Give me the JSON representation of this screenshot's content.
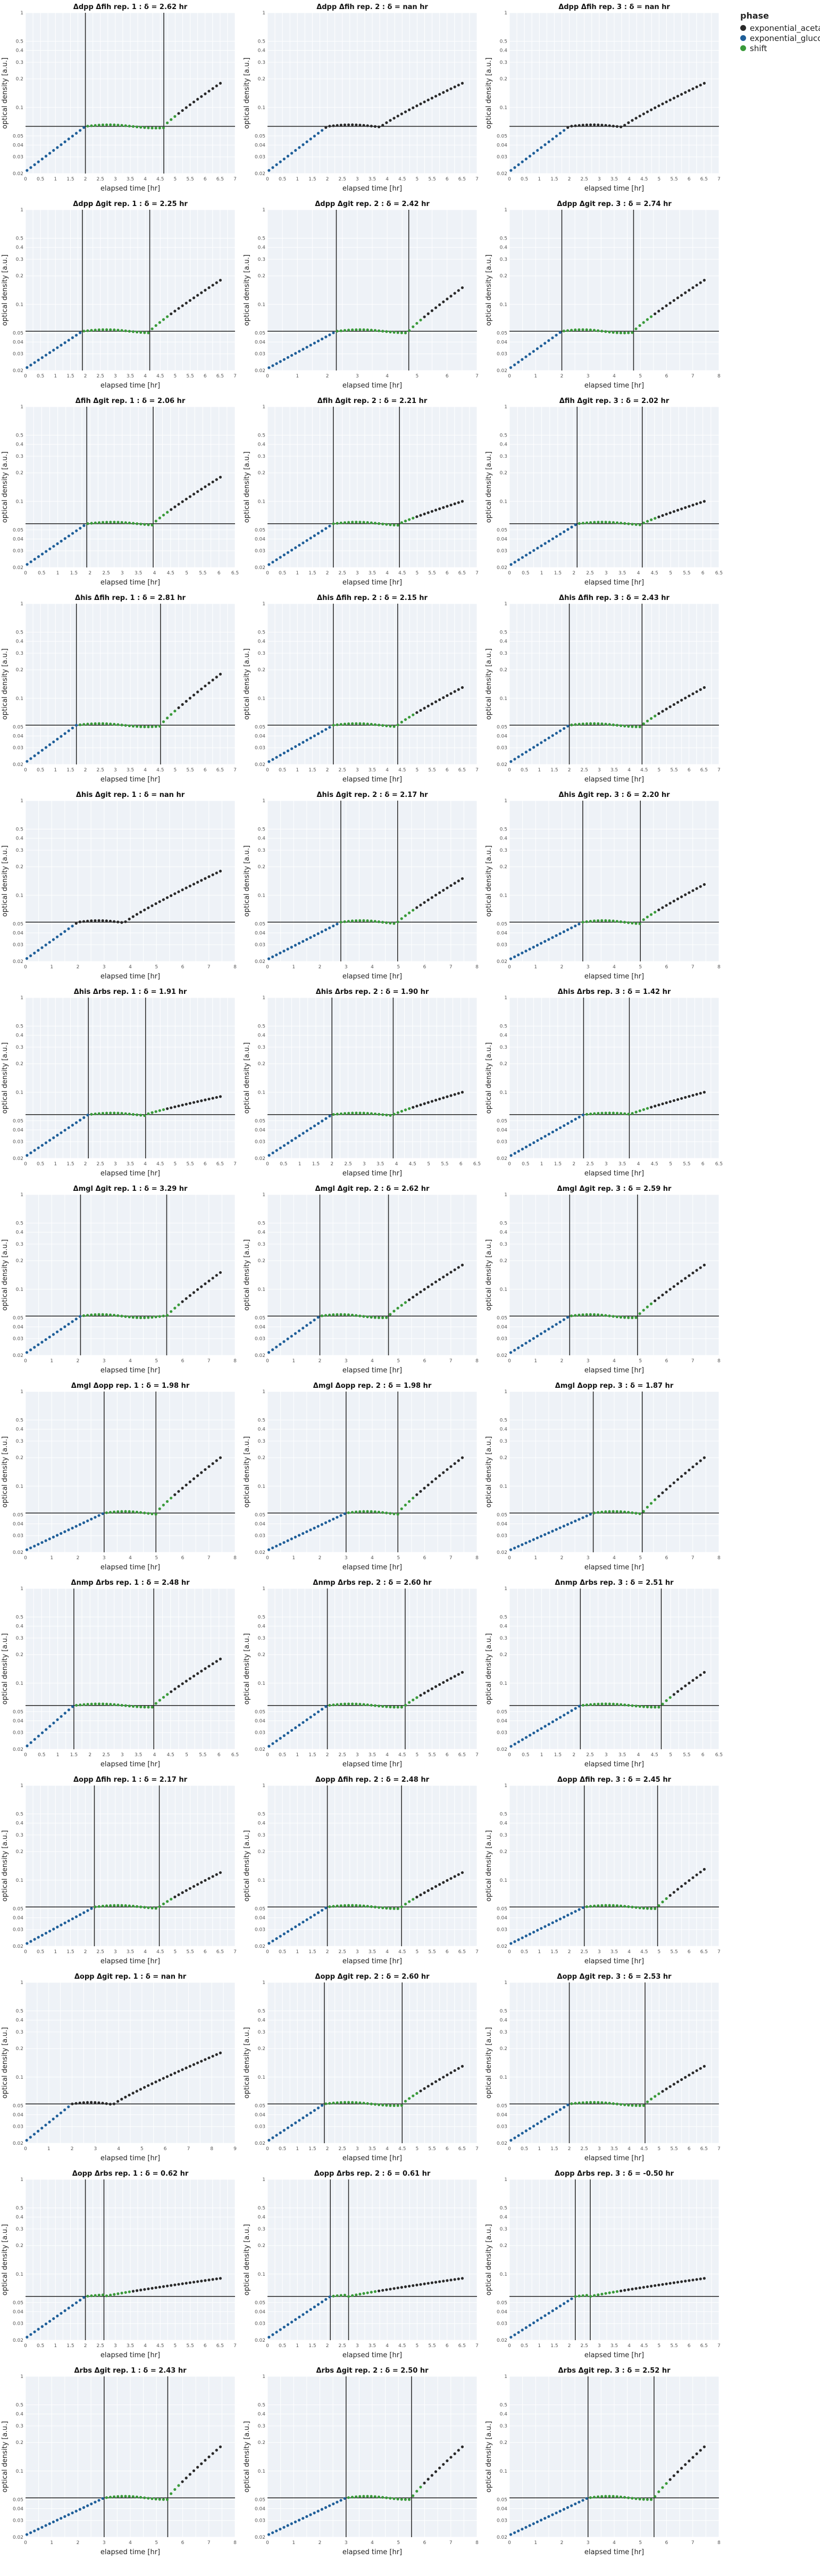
{
  "legend": {
    "title": "phase",
    "entries": [
      {
        "name": "exponential_acetate",
        "color": "#2a2a2a"
      },
      {
        "name": "exponential_glucose",
        "color": "#1f5f99"
      },
      {
        "name": "shift",
        "color": "#3a9a3a"
      }
    ]
  },
  "chart_data": {
    "type": "scatter",
    "xlabel": "elapsed time [hr]",
    "ylabel": "optical density [a.u.]",
    "y_scale": "log",
    "ylim": [
      0.02,
      1.0
    ],
    "y_ticks": [
      0.02,
      0.03,
      0.04,
      0.05,
      0.1,
      0.2,
      0.3,
      0.4,
      0.5,
      1
    ],
    "background_color": "#eef2f7",
    "panels": [
      {
        "title": "Δdpp Δfih rep. 1 : δ = 2.62 hr",
        "xmax": 7,
        "xstep": 0.5,
        "t0": 2.0,
        "t1": 4.62,
        "od": 0.063,
        "tail": 0.18,
        "mode": "normal"
      },
      {
        "title": "Δdpp Δfih rep. 2 : δ = nan hr",
        "xmax": 7,
        "xstep": 0.5,
        "t0": 2.0,
        "t1": null,
        "od": 0.063,
        "tail": 0.18,
        "mode": "nan"
      },
      {
        "title": "Δdpp Δfih rep. 3 : δ = nan hr",
        "xmax": 7,
        "xstep": 0.5,
        "t0": 2.0,
        "t1": null,
        "od": 0.063,
        "tail": 0.18,
        "mode": "nan"
      },
      {
        "title": "Δdpp Δgit rep. 1 : δ = 2.25 hr",
        "xmax": 7,
        "xstep": 0.5,
        "t0": 1.9,
        "t1": 4.15,
        "od": 0.052,
        "tail": 0.18,
        "mode": "normal"
      },
      {
        "title": "Δdpp Δgit rep. 2 : δ = 2.42 hr",
        "xmax": 7,
        "xstep": 1,
        "t0": 2.3,
        "t1": 4.72,
        "od": 0.052,
        "tail": 0.15,
        "mode": "normal"
      },
      {
        "title": "Δdpp Δgit rep. 3 : δ = 2.74 hr",
        "xmax": 8,
        "xstep": 1,
        "t0": 2.0,
        "t1": 4.74,
        "od": 0.052,
        "tail": 0.18,
        "mode": "normal"
      },
      {
        "title": "Δfih Δgit rep. 1 : δ = 2.06 hr",
        "xmax": 6.5,
        "xstep": 0.5,
        "t0": 1.9,
        "t1": 3.96,
        "od": 0.058,
        "tail": 0.18,
        "mode": "normal"
      },
      {
        "title": "Δfih Δgit rep. 2 : δ = 2.21 hr",
        "xmax": 7,
        "xstep": 0.5,
        "t0": 2.2,
        "t1": 4.41,
        "od": 0.058,
        "tail": 0.1,
        "mode": "normal"
      },
      {
        "title": "Δfih Δgit rep. 3 : δ = 2.02 hr",
        "xmax": 6.5,
        "xstep": 0.5,
        "t0": 2.1,
        "t1": 4.12,
        "od": 0.058,
        "tail": 0.1,
        "mode": "normal"
      },
      {
        "title": "Δhis Δfih rep. 1 : δ = 2.81 hr",
        "xmax": 7,
        "xstep": 0.5,
        "t0": 1.7,
        "t1": 4.51,
        "od": 0.052,
        "tail": 0.18,
        "mode": "normal"
      },
      {
        "title": "Δhis Δfih rep. 2 : δ = 2.15 hr",
        "xmax": 7,
        "xstep": 0.5,
        "t0": 2.2,
        "t1": 4.35,
        "od": 0.052,
        "tail": 0.13,
        "mode": "normal"
      },
      {
        "title": "Δhis Δfih rep. 3 : δ = 2.43 hr",
        "xmax": 7,
        "xstep": 0.5,
        "t0": 2.0,
        "t1": 4.43,
        "od": 0.052,
        "tail": 0.13,
        "mode": "normal"
      },
      {
        "title": "Δhis Δgit rep. 1 : δ = nan hr",
        "xmax": 8,
        "xstep": 1,
        "t0": 2.0,
        "t1": null,
        "od": 0.052,
        "tail": 0.18,
        "mode": "nan"
      },
      {
        "title": "Δhis Δgit rep. 2 : δ = 2.17 hr",
        "xmax": 8,
        "xstep": 1,
        "t0": 2.8,
        "t1": 4.97,
        "od": 0.052,
        "tail": 0.15,
        "mode": "normal"
      },
      {
        "title": "Δhis Δgit rep. 3 : δ = 2.20 hr",
        "xmax": 8,
        "xstep": 1,
        "t0": 2.8,
        "t1": 5.0,
        "od": 0.052,
        "tail": 0.13,
        "mode": "normal"
      },
      {
        "title": "Δhis Δrbs rep. 1 : δ = 1.91 hr",
        "xmax": 7,
        "xstep": 0.5,
        "t0": 2.1,
        "t1": 4.01,
        "od": 0.058,
        "tail": 0.09,
        "mode": "normal"
      },
      {
        "title": "Δhis Δrbs rep. 2 : δ = 1.90 hr",
        "xmax": 6.5,
        "xstep": 0.5,
        "t0": 2.0,
        "t1": 3.9,
        "od": 0.058,
        "tail": 0.1,
        "mode": "normal"
      },
      {
        "title": "Δhis Δrbs rep. 3 : δ = 1.42 hr",
        "xmax": 6.5,
        "xstep": 0.5,
        "t0": 2.3,
        "t1": 3.72,
        "od": 0.058,
        "tail": 0.1,
        "mode": "normal"
      },
      {
        "title": "Δmgl Δgit rep. 1 : δ = 3.29 hr",
        "xmax": 8,
        "xstep": 1,
        "t0": 2.1,
        "t1": 5.39,
        "od": 0.052,
        "tail": 0.15,
        "mode": "normal"
      },
      {
        "title": "Δmgl Δgit rep. 2 : δ = 2.62 hr",
        "xmax": 8,
        "xstep": 1,
        "t0": 2.0,
        "t1": 4.62,
        "od": 0.052,
        "tail": 0.18,
        "mode": "normal"
      },
      {
        "title": "Δmgl Δgit rep. 3 : δ = 2.59 hr",
        "xmax": 8,
        "xstep": 1,
        "t0": 2.3,
        "t1": 4.89,
        "od": 0.052,
        "tail": 0.18,
        "mode": "normal"
      },
      {
        "title": "Δmgl Δopp rep. 1 : δ = 1.98 hr",
        "xmax": 8,
        "xstep": 1,
        "t0": 3.0,
        "t1": 4.98,
        "od": 0.052,
        "tail": 0.2,
        "mode": "normal"
      },
      {
        "title": "Δmgl Δopp rep. 2 : δ = 1.98 hr",
        "xmax": 8,
        "xstep": 1,
        "t0": 3.0,
        "t1": 4.98,
        "od": 0.052,
        "tail": 0.2,
        "mode": "normal"
      },
      {
        "title": "Δmgl Δopp rep. 3 : δ = 1.87 hr",
        "xmax": 8,
        "xstep": 1,
        "t0": 3.2,
        "t1": 5.07,
        "od": 0.052,
        "tail": 0.2,
        "mode": "normal"
      },
      {
        "title": "Δnmp Δrbs rep. 1 : δ = 2.48 hr",
        "xmax": 6.5,
        "xstep": 0.5,
        "t0": 1.5,
        "t1": 3.98,
        "od": 0.058,
        "tail": 0.18,
        "mode": "normal"
      },
      {
        "title": "Δnmp Δrbs rep. 2 : δ = 2.60 hr",
        "xmax": 7,
        "xstep": 0.5,
        "t0": 2.0,
        "t1": 4.6,
        "od": 0.058,
        "tail": 0.13,
        "mode": "normal"
      },
      {
        "title": "Δnmp Δrbs rep. 3 : δ = 2.51 hr",
        "xmax": 6.5,
        "xstep": 0.5,
        "t0": 2.2,
        "t1": 4.71,
        "od": 0.058,
        "tail": 0.13,
        "mode": "normal"
      },
      {
        "title": "Δopp Δfih rep. 1 : δ = 2.17 hr",
        "xmax": 7,
        "xstep": 0.5,
        "t0": 2.3,
        "t1": 4.47,
        "od": 0.052,
        "tail": 0.12,
        "mode": "normal"
      },
      {
        "title": "Δopp Δfih rep. 2 : δ = 2.48 hr",
        "xmax": 7,
        "xstep": 0.5,
        "t0": 2.0,
        "t1": 4.48,
        "od": 0.052,
        "tail": 0.12,
        "mode": "normal"
      },
      {
        "title": "Δopp Δfih rep. 3 : δ = 2.45 hr",
        "xmax": 7,
        "xstep": 0.5,
        "t0": 2.5,
        "t1": 4.95,
        "od": 0.052,
        "tail": 0.13,
        "mode": "normal"
      },
      {
        "title": "Δopp Δgit rep. 1 : δ = nan hr",
        "xmax": 9,
        "xstep": 1,
        "t0": 2.0,
        "t1": null,
        "od": 0.052,
        "tail": 0.18,
        "mode": "nan"
      },
      {
        "title": "Δopp Δgit rep. 2 : δ = 2.60 hr",
        "xmax": 7,
        "xstep": 0.5,
        "t0": 1.9,
        "t1": 4.5,
        "od": 0.052,
        "tail": 0.13,
        "mode": "normal"
      },
      {
        "title": "Δopp Δgit rep. 3 : δ = 2.53 hr",
        "xmax": 7,
        "xstep": 0.5,
        "t0": 2.0,
        "t1": 4.53,
        "od": 0.052,
        "tail": 0.13,
        "mode": "normal"
      },
      {
        "title": "Δopp Δrbs rep. 1 : δ = 0.62 hr",
        "xmax": 7,
        "xstep": 0.5,
        "t0": 2.0,
        "t1": 2.62,
        "od": 0.058,
        "tail": 0.09,
        "mode": "normal"
      },
      {
        "title": "Δopp Δrbs rep. 2 : δ = 0.61 hr",
        "xmax": 7,
        "xstep": 0.5,
        "t0": 2.1,
        "t1": 2.71,
        "od": 0.058,
        "tail": 0.09,
        "mode": "normal"
      },
      {
        "title": "Δopp Δrbs rep. 3 : δ = -0.50 hr",
        "xmax": 7,
        "xstep": 0.5,
        "t0": 2.7,
        "t1": 2.2,
        "od": 0.058,
        "tail": 0.09,
        "mode": "normal"
      },
      {
        "title": "Δrbs Δgit rep. 1 : δ = 2.43 hr",
        "xmax": 8,
        "xstep": 1,
        "t0": 3.0,
        "t1": 5.43,
        "od": 0.052,
        "tail": 0.18,
        "mode": "normal"
      },
      {
        "title": "Δrbs Δgit rep. 2 : δ = 2.50 hr",
        "xmax": 8,
        "xstep": 1,
        "t0": 3.0,
        "t1": 5.5,
        "od": 0.052,
        "tail": 0.18,
        "mode": "normal"
      },
      {
        "title": "Δrbs Δgit rep. 3 : δ = 2.52 hr",
        "xmax": 8,
        "xstep": 1,
        "t0": 3.0,
        "t1": 5.52,
        "od": 0.052,
        "tail": 0.18,
        "mode": "normal"
      }
    ]
  }
}
